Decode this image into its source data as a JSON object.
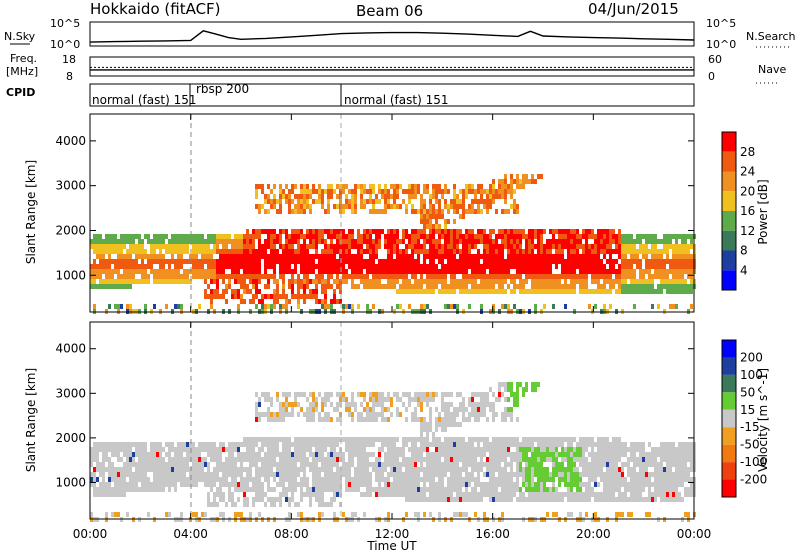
{
  "header": {
    "site": "Hokkaido (fitACF)",
    "beam": "Beam 06",
    "date": "04/Jun/2015"
  },
  "top_panels": {
    "nsky": {
      "label": "N.Sky",
      "right_label": "N.Search",
      "left_ticks": [
        "10^5",
        "10^0"
      ],
      "right_ticks": [
        "10^5",
        "10^0"
      ]
    },
    "freq": {
      "label_line1": "Freq.",
      "label_line2": "[MHz]",
      "right_label": "Nave",
      "left_ticks": [
        "18",
        "8"
      ],
      "right_ticks": [
        "60",
        "0"
      ]
    },
    "cpid": {
      "label": "CPID",
      "segments": [
        "normal (fast) 151",
        "rbsp 200",
        "normal (fast) 151"
      ]
    }
  },
  "colors": {
    "power_scale": [
      "#0000ff",
      "#1f3f9f",
      "#3a7a5a",
      "#5faa4a",
      "#f0c020",
      "#f09020",
      "#f05a10",
      "#ff0000"
    ],
    "velocity_scale": [
      "#0000ff",
      "#1f3f9f",
      "#3a7a5a",
      "#66cc33",
      "#c8c8c8",
      "#f0a020",
      "#f07a10",
      "#f04010",
      "#ff0000"
    ]
  },
  "chart_data": [
    {
      "type": "line",
      "panel": "N.Sky / N.Search",
      "x_unit": "hour UT",
      "scale": "log",
      "ylim": [
        1,
        100000
      ],
      "series": [
        {
          "name": "N.Sky",
          "x": [
            0,
            1,
            2,
            3,
            4,
            4.5,
            5,
            5.5,
            6,
            7,
            8,
            9,
            10,
            11,
            12,
            13,
            14,
            15,
            16,
            17,
            17.5,
            18,
            19,
            20,
            21,
            22,
            23,
            24
          ],
          "y": [
            3,
            4,
            5,
            6,
            8,
            2000,
            300,
            40,
            15,
            25,
            60,
            150,
            400,
            600,
            700,
            700,
            500,
            300,
            150,
            80,
            1500,
            100,
            60,
            40,
            30,
            20,
            15,
            10
          ]
        }
      ]
    },
    {
      "type": "line",
      "panel": "Freq. [MHz] / Nave",
      "x_unit": "hour UT",
      "ylim_left": [
        8,
        18
      ],
      "ylim_right": [
        0,
        60
      ],
      "series": [
        {
          "name": "Freq.",
          "x": [
            0,
            24
          ],
          "y": [
            11,
            11
          ]
        },
        {
          "name": "Nave",
          "x": [
            0,
            24
          ],
          "y": [
            27,
            27
          ]
        }
      ]
    },
    {
      "type": "heatmap",
      "panel": "Power",
      "x_label": "Time UT",
      "y_label": "Slant Range [km]",
      "colorbar_label": "Power [dB]",
      "xlim": [
        0,
        24
      ],
      "ylim": [
        180,
        4600
      ],
      "x_ticks": [
        "00:00",
        "04:00",
        "08:00",
        "12:00",
        "16:00",
        "20:00",
        "00:00"
      ],
      "x_tick_values": [
        0,
        4,
        8,
        12,
        16,
        20,
        24
      ],
      "y_ticks": [
        1000,
        2000,
        3000,
        4000
      ],
      "colorbar_ticks": [
        "4",
        "8",
        "12",
        "16",
        "20",
        "24",
        "28"
      ],
      "colorbar_range": [
        0,
        30
      ]
    },
    {
      "type": "heatmap",
      "panel": "Velocity",
      "x_label": "Time UT",
      "y_label": "Slant Range [km]",
      "colorbar_label": "Velocity [m s^-1]",
      "xlim": [
        0,
        24
      ],
      "ylim": [
        180,
        4600
      ],
      "x_ticks": [
        "00:00",
        "04:00",
        "08:00",
        "12:00",
        "16:00",
        "20:00",
        "00:00"
      ],
      "x_tick_values": [
        0,
        4,
        8,
        12,
        16,
        20,
        24
      ],
      "y_ticks": [
        1000,
        2000,
        3000,
        4000
      ],
      "colorbar_ticks": [
        "200",
        "100",
        "50",
        "15",
        "-15",
        "-50",
        "-100",
        "-200"
      ]
    }
  ],
  "x_axis_title": "Time UT"
}
